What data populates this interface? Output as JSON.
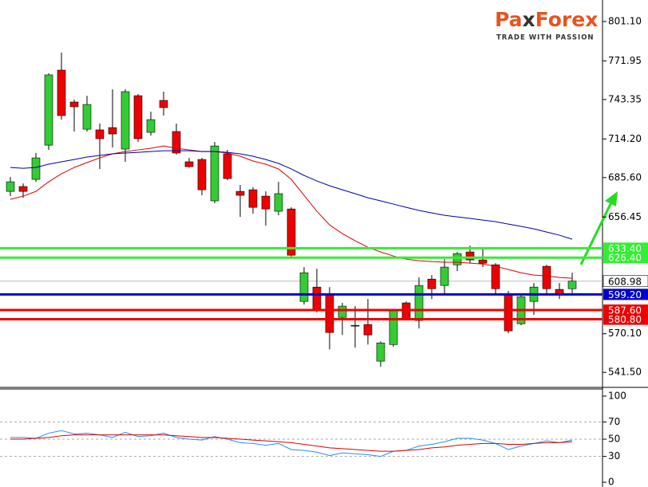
{
  "logo": {
    "parts": [
      "Pa",
      "x",
      "Forex"
    ],
    "tagline": "TRADE WITH PASSION"
  },
  "chart_data": {
    "type": "candlestick",
    "up_color": "#33cc33",
    "down_color": "#ee0000",
    "open": [
      675.4,
      679.0,
      684.3,
      709.6,
      765.1,
      741.5,
      721.4,
      720.9,
      722.6,
      706.7,
      746.2,
      719.1,
      742.7,
      719.7,
      697.3,
      699.0,
      668.4,
      703.2,
      675.4,
      676.6,
      671.9,
      660.7,
      662.4,
      594.0,
      604.6,
      598.7,
      582.2,
      576.3,
      576.9,
      549.8,
      562.1,
      592.9,
      579.9,
      610.5,
      605.8,
      621.1,
      630.6,
      624.7,
      621.1,
      598.7,
      577.5,
      594.0,
      620.0,
      602.9,
      603.4
    ],
    "high": [
      686.0,
      681.3,
      703.8,
      762.8,
      778.1,
      743.3,
      746.2,
      725.6,
      750.9,
      750.9,
      747.4,
      734.4,
      749.2,
      725.6,
      700.2,
      700.2,
      712.0,
      706.1,
      680.1,
      678.4,
      675.4,
      682.5,
      663.6,
      619.4,
      618.2,
      604.6,
      592.9,
      590.5,
      595.8,
      564.5,
      588.1,
      594.0,
      611.7,
      613.5,
      625.3,
      630.6,
      635.3,
      633.0,
      622.3,
      601.7,
      599.9,
      607.6,
      621.1,
      607.6,
      615.2
    ],
    "low": [
      671.9,
      670.7,
      682.5,
      706.1,
      728.5,
      719.7,
      719.7,
      691.9,
      707.9,
      697.3,
      712.0,
      716.7,
      731.5,
      702.6,
      693.1,
      672.5,
      666.6,
      683.7,
      656.5,
      658.9,
      650.1,
      657.7,
      627.0,
      591.7,
      585.8,
      558.6,
      569.2,
      559.8,
      562.1,
      545.6,
      560.4,
      579.9,
      574.0,
      595.8,
      599.9,
      616.4,
      622.3,
      619.4,
      599.9,
      570.4,
      576.3,
      584.0,
      599.9,
      595.8,
      599.9
    ],
    "close": [
      682.5,
      675.4,
      700.2,
      761.6,
      731.5,
      738.0,
      739.7,
      714.4,
      717.9,
      749.2,
      714.4,
      728.5,
      737.4,
      703.8,
      693.7,
      676.6,
      709.0,
      684.9,
      672.5,
      663.6,
      662.4,
      673.7,
      628.2,
      615.2,
      588.1,
      571.0,
      590.5,
      575.7,
      569.2,
      563.3,
      586.9,
      581.0,
      605.8,
      603.4,
      619.4,
      629.4,
      624.7,
      622.3,
      603.4,
      572.2,
      597.5,
      604.6,
      603.4,
      599.9,
      609.0
    ],
    "series": [
      {
        "color": "#dd0000",
        "values": [
          669.5,
          671.9,
          675.4,
          682.5,
          688.4,
          693.1,
          696.7,
          700.2,
          703.2,
          704.9,
          706.1,
          707.3,
          709.0,
          707.3,
          706.1,
          704.9,
          704.9,
          703.8,
          701.4,
          697.9,
          695.5,
          692.0,
          684.3,
          672.5,
          660.7,
          650.6,
          644.2,
          638.9,
          634.1,
          630.6,
          627.6,
          625.3,
          624.1,
          623.5,
          623.0,
          623.0,
          622.3,
          621.7,
          620.0,
          617.6,
          615.2,
          613.5,
          612.9,
          611.7,
          611.1
        ]
      },
      {
        "color": "#0000aa",
        "values": [
          693.1,
          692.5,
          693.1,
          695.5,
          697.3,
          699.0,
          700.8,
          702.0,
          703.2,
          703.8,
          704.3,
          704.9,
          705.5,
          705.5,
          705.5,
          704.9,
          704.9,
          704.3,
          703.2,
          701.4,
          699.0,
          696.1,
          692.0,
          687.2,
          683.1,
          679.6,
          676.6,
          673.7,
          670.7,
          668.4,
          666.0,
          663.6,
          661.3,
          659.5,
          657.7,
          656.5,
          655.4,
          654.2,
          653.0,
          651.2,
          649.5,
          647.7,
          645.3,
          643.0,
          640.0
        ]
      }
    ],
    "ylim": [
      531,
      817
    ],
    "yticks": [
      {
        "value": 801.1,
        "label": "801.10"
      },
      771.95,
      743.35,
      {
        "value": 714.2,
        "label": "714.20"
      },
      {
        "value": 685.6,
        "label": "685.60"
      },
      656.45,
      {
        "value": 570.1,
        "label": "570.10"
      },
      {
        "value": 541.5,
        "label": "541.50"
      }
    ],
    "levels": [
      {
        "value": 633.4,
        "label": "633.40",
        "color": "#33ee33"
      },
      {
        "value": 626.4,
        "label": "626.40",
        "color": "#33ee33"
      },
      {
        "value": 599.2,
        "label": "599.20",
        "color": "#0000cc"
      },
      {
        "value": 587.6,
        "label": "587.60",
        "color": "#ee0000"
      },
      {
        "value": 580.8,
        "label": "580.80",
        "color": "#ee0000"
      }
    ],
    "last_price": 608.98,
    "indicator": {
      "ylim": [
        -5.5,
        108.3
      ],
      "yticks": [
        100,
        70,
        50,
        30,
        0
      ],
      "guides": [
        70,
        50,
        30
      ],
      "series": [
        {
          "color": "#1e90ff",
          "values": [
            52,
            52,
            51,
            57,
            60,
            56,
            57,
            55,
            52,
            58,
            53,
            54,
            57,
            52,
            50,
            49,
            53,
            50,
            46,
            45,
            43,
            45,
            38,
            37,
            35,
            31,
            34,
            33,
            32,
            30,
            36,
            37,
            42,
            44,
            47,
            51,
            51,
            49,
            45,
            38,
            42,
            45,
            48,
            46,
            49
          ]
        },
        {
          "color": "#dd0000",
          "values": [
            50,
            50,
            51,
            52,
            54,
            55,
            55,
            55,
            55,
            55,
            55,
            55,
            55,
            54,
            53,
            52,
            52,
            51,
            50,
            49,
            48,
            47,
            46,
            44,
            42,
            40,
            39,
            38,
            37,
            36,
            36,
            37,
            38,
            40,
            41,
            43,
            44,
            45,
            45,
            44,
            44,
            45,
            46,
            46,
            47
          ]
        }
      ]
    }
  }
}
